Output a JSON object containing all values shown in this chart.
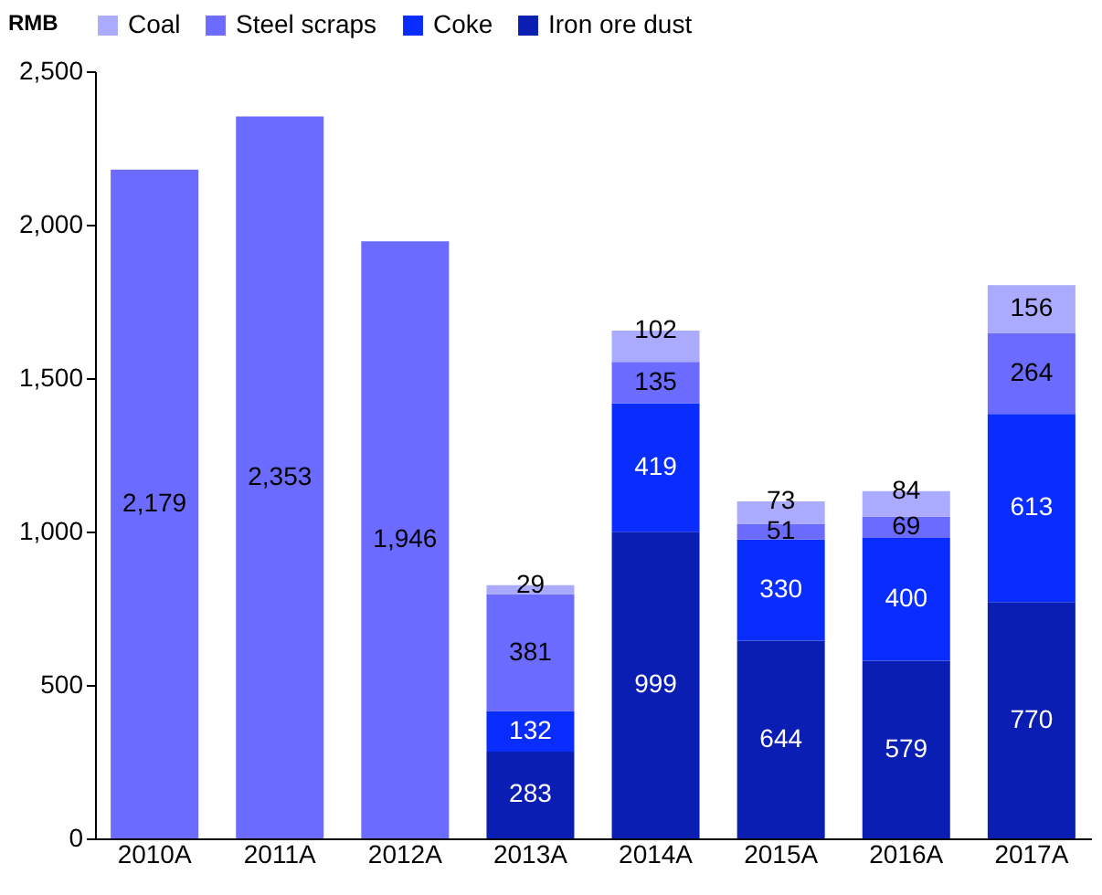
{
  "chart_data": {
    "type": "bar",
    "stacked": true,
    "ylabel": "RMB",
    "categories": [
      "2010A",
      "2011A",
      "2012A",
      "2013A",
      "2014A",
      "2015A",
      "2016A",
      "2017A"
    ],
    "series": [
      {
        "name": "Iron ore dust",
        "color": "#0a1eb4",
        "values": [
          null,
          null,
          null,
          283,
          999,
          644,
          579,
          770
        ],
        "value_labels": [
          null,
          null,
          null,
          "283",
          "999",
          "644",
          "579",
          "770"
        ]
      },
      {
        "name": "Coke",
        "color": "#0a2dff",
        "values": [
          null,
          null,
          null,
          132,
          419,
          330,
          400,
          613
        ],
        "value_labels": [
          null,
          null,
          null,
          "132",
          "419",
          "330",
          "400",
          "613"
        ]
      },
      {
        "name": "Steel scraps",
        "color": "#6b6bff",
        "values": [
          2179,
          2353,
          1946,
          381,
          135,
          51,
          69,
          264
        ],
        "value_labels": [
          "2,179",
          "2,353",
          "1,946",
          "381",
          "135",
          "51",
          "69",
          "264"
        ]
      },
      {
        "name": "Coal",
        "color": "#aaaaff",
        "values": [
          null,
          null,
          null,
          29,
          102,
          73,
          84,
          156
        ],
        "value_labels": [
          null,
          null,
          null,
          "29",
          "102",
          "73",
          "84",
          "156"
        ]
      }
    ],
    "ylim": [
      0,
      2500
    ],
    "yticks": [
      0,
      500,
      {
        "value": 1000,
        "label": "1,000"
      },
      {
        "value": 1500,
        "label": "1,500"
      },
      {
        "value": 2000,
        "label": "2,000"
      },
      {
        "value": 2500,
        "label": "2,500"
      }
    ],
    "legend": "top",
    "grid": false
  }
}
